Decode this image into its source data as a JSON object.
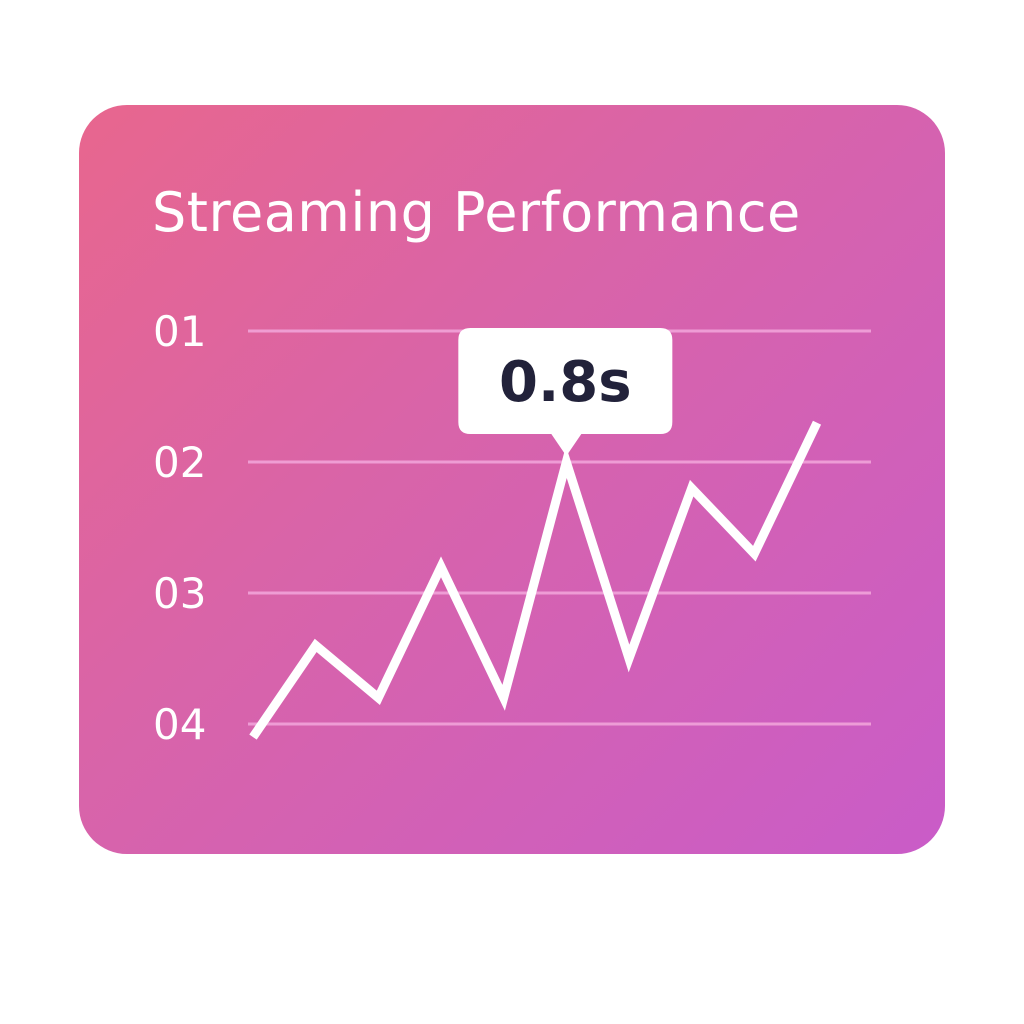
{
  "chart_data": {
    "type": "line",
    "title": "Streaming Performance",
    "y_tick_labels": [
      "01",
      "02",
      "03",
      "04"
    ],
    "ylim": [
      1,
      4
    ],
    "y_reversed": true,
    "grid": true,
    "series": [
      {
        "values": [
          4.1,
          3.4,
          3.8,
          2.8,
          3.8,
          2.0,
          3.5,
          2.2,
          2.7,
          1.7
        ]
      }
    ],
    "annotation": {
      "text": "0.8s",
      "point_index": 5
    },
    "colors": {
      "line": "#ffffff",
      "grid": "#f3a7dc",
      "tooltip_bg": "#ffffff",
      "tooltip_text": "#22223a"
    }
  }
}
